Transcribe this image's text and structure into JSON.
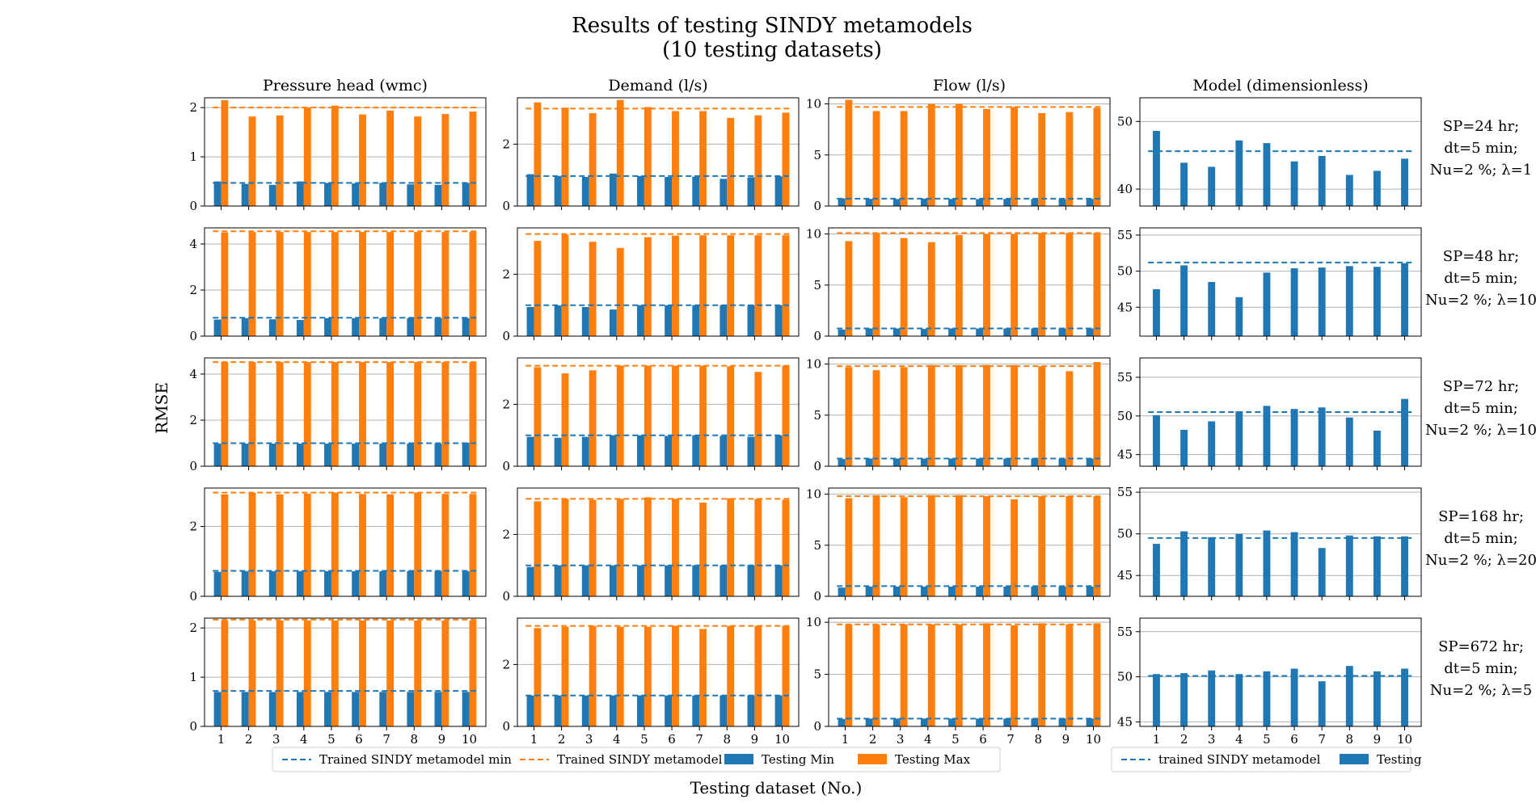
{
  "figure": {
    "title_line1": "Results of testing SINDY metamodels",
    "title_line2": "(10 testing datasets)",
    "ylabel": "RMSE",
    "xlabel": "Testing dataset (No.)"
  },
  "column_titles": [
    "Pressure head (wmc)",
    "Demand (l/s)",
    "Flow (l/s)",
    "Model (dimensionless)"
  ],
  "row_labels": [
    [
      "SP=24 hr;",
      "dt=5 min;",
      "Nu=2 %; λ=1"
    ],
    [
      "SP=48 hr;",
      "dt=5 min;",
      "Nu=2 %; λ=10"
    ],
    [
      "SP=72 hr;",
      "dt=5 min;",
      "Nu=2 %; λ=10"
    ],
    [
      "SP=168 hr;",
      "dt=5 min;",
      "Nu=2 %; λ=20"
    ],
    [
      "SP=672 hr;",
      "dt=5 min;",
      "Nu=2 %; λ=5"
    ]
  ],
  "legend_left": [
    {
      "label": "Trained SINDY metamodel min",
      "kind": "dash",
      "color": "#1f77b4"
    },
    {
      "label": "Trained SINDY metamodel max",
      "kind": "dash",
      "color": "#ff7f0e"
    },
    {
      "label": "Testing Min",
      "kind": "patch",
      "color": "#1f77b4"
    },
    {
      "label": "Testing Max",
      "kind": "patch",
      "color": "#ff7f0e"
    }
  ],
  "legend_right": [
    {
      "label": "trained SINDY metamodel",
      "kind": "dash",
      "color": "#1f77b4"
    },
    {
      "label": "Testing",
      "kind": "patch",
      "color": "#1f77b4"
    }
  ],
  "colors": {
    "min": "#1f77b4",
    "max": "#ff7f0e",
    "grid": "#b0b0b0"
  },
  "chart_data": [
    {
      "type": "bar",
      "row": 0,
      "col": 0,
      "categories": [
        "1",
        "2",
        "3",
        "4",
        "5",
        "6",
        "7",
        "8",
        "9",
        "10"
      ],
      "ylim": [
        0,
        2.2
      ],
      "yticks": [
        0,
        1,
        2
      ],
      "grid": true,
      "series": [
        {
          "name": "Testing Min",
          "values": [
            0.5,
            0.45,
            0.43,
            0.5,
            0.47,
            0.46,
            0.47,
            0.44,
            0.43,
            0.47
          ]
        },
        {
          "name": "Testing Max",
          "values": [
            2.15,
            1.82,
            1.84,
            2.0,
            2.04,
            1.86,
            1.94,
            1.82,
            1.87,
            1.92
          ]
        }
      ],
      "trained_min": 0.47,
      "trained_max": 2.0
    },
    {
      "type": "bar",
      "row": 0,
      "col": 1,
      "categories": [
        "1",
        "2",
        "3",
        "4",
        "5",
        "6",
        "7",
        "8",
        "9",
        "10"
      ],
      "ylim": [
        0,
        3.5
      ],
      "yticks": [
        0,
        2
      ],
      "grid": true,
      "series": [
        {
          "name": "Testing Min",
          "values": [
            1.03,
            0.97,
            0.94,
            1.05,
            0.97,
            0.94,
            0.95,
            0.88,
            0.93,
            0.96
          ]
        },
        {
          "name": "Testing Max",
          "values": [
            3.35,
            3.18,
            3.0,
            3.43,
            3.2,
            3.07,
            3.07,
            2.85,
            2.93,
            3.02
          ]
        }
      ],
      "trained_min": 0.97,
      "trained_max": 3.15
    },
    {
      "type": "bar",
      "row": 0,
      "col": 2,
      "categories": [
        "1",
        "2",
        "3",
        "4",
        "5",
        "6",
        "7",
        "8",
        "9",
        "10"
      ],
      "ylim": [
        0,
        10.6
      ],
      "yticks": [
        0,
        5,
        10
      ],
      "grid": true,
      "series": [
        {
          "name": "Testing Min",
          "values": [
            0.75,
            0.7,
            0.68,
            0.72,
            0.7,
            0.68,
            0.7,
            0.68,
            0.68,
            0.7
          ]
        },
        {
          "name": "Testing Max",
          "values": [
            10.4,
            9.3,
            9.3,
            10.0,
            10.0,
            9.5,
            9.7,
            9.1,
            9.2,
            9.6
          ]
        }
      ],
      "trained_min": 0.72,
      "trained_max": 9.7
    },
    {
      "type": "bar",
      "row": 0,
      "col": 3,
      "categories": [
        "1",
        "2",
        "3",
        "4",
        "5",
        "6",
        "7",
        "8",
        "9",
        "10"
      ],
      "ylim": [
        37.5,
        53.5
      ],
      "yticks": [
        40,
        50
      ],
      "grid": true,
      "series": [
        {
          "name": "Testing",
          "values": [
            48.6,
            43.9,
            43.3,
            47.2,
            46.8,
            44.1,
            44.9,
            42.1,
            42.7,
            44.5
          ]
        }
      ],
      "trained": 45.6
    },
    {
      "type": "bar",
      "row": 1,
      "col": 0,
      "categories": [
        "1",
        "2",
        "3",
        "4",
        "5",
        "6",
        "7",
        "8",
        "9",
        "10"
      ],
      "ylim": [
        0,
        4.7
      ],
      "yticks": [
        0,
        2,
        4
      ],
      "grid": true,
      "series": [
        {
          "name": "Testing Min",
          "values": [
            0.72,
            0.78,
            0.73,
            0.7,
            0.78,
            0.78,
            0.78,
            0.78,
            0.78,
            0.78
          ]
        },
        {
          "name": "Testing Max",
          "values": [
            4.5,
            4.52,
            4.52,
            4.52,
            4.52,
            4.52,
            4.52,
            4.52,
            4.52,
            4.52
          ]
        }
      ],
      "trained_min": 0.8,
      "trained_max": 4.55
    },
    {
      "type": "bar",
      "row": 1,
      "col": 1,
      "categories": [
        "1",
        "2",
        "3",
        "4",
        "5",
        "6",
        "7",
        "8",
        "9",
        "10"
      ],
      "ylim": [
        0,
        3.5
      ],
      "yticks": [
        0,
        2
      ],
      "grid": true,
      "series": [
        {
          "name": "Testing Min",
          "values": [
            0.94,
            0.99,
            0.94,
            0.86,
            1.0,
            1.0,
            1.0,
            1.0,
            1.0,
            1.0
          ]
        },
        {
          "name": "Testing Max",
          "values": [
            3.08,
            3.28,
            3.05,
            2.85,
            3.2,
            3.25,
            3.26,
            3.26,
            3.26,
            3.26
          ]
        }
      ],
      "trained_min": 1.0,
      "trained_max": 3.3
    },
    {
      "type": "bar",
      "row": 1,
      "col": 2,
      "categories": [
        "1",
        "2",
        "3",
        "4",
        "5",
        "6",
        "7",
        "8",
        "9",
        "10"
      ],
      "ylim": [
        0,
        10.6
      ],
      "yticks": [
        0,
        5,
        10
      ],
      "grid": true,
      "series": [
        {
          "name": "Testing Min",
          "values": [
            0.65,
            0.75,
            0.75,
            0.7,
            0.75,
            0.75,
            0.75,
            0.75,
            0.75,
            0.75
          ]
        },
        {
          "name": "Testing Max",
          "values": [
            9.3,
            10.1,
            9.6,
            9.2,
            9.9,
            10.0,
            10.0,
            10.1,
            10.1,
            10.1
          ]
        }
      ],
      "trained_min": 0.75,
      "trained_max": 10.1
    },
    {
      "type": "bar",
      "row": 1,
      "col": 3,
      "categories": [
        "1",
        "2",
        "3",
        "4",
        "5",
        "6",
        "7",
        "8",
        "9",
        "10"
      ],
      "ylim": [
        41,
        56
      ],
      "yticks": [
        45,
        50,
        55
      ],
      "grid": true,
      "series": [
        {
          "name": "Testing",
          "values": [
            47.5,
            50.8,
            48.5,
            46.4,
            49.8,
            50.4,
            50.5,
            50.7,
            50.6,
            51.1
          ]
        }
      ],
      "trained": 51.2
    },
    {
      "type": "bar",
      "row": 2,
      "col": 0,
      "categories": [
        "1",
        "2",
        "3",
        "4",
        "5",
        "6",
        "7",
        "8",
        "9",
        "10"
      ],
      "ylim": [
        0,
        4.7
      ],
      "yticks": [
        0,
        2,
        4
      ],
      "grid": true,
      "series": [
        {
          "name": "Testing Min",
          "values": [
            0.98,
            0.98,
            0.98,
            0.98,
            0.98,
            0.98,
            0.98,
            0.98,
            0.98,
            1.02
          ]
        },
        {
          "name": "Testing Max",
          "values": [
            4.52,
            4.52,
            4.52,
            4.52,
            4.52,
            4.52,
            4.52,
            4.52,
            4.52,
            4.52
          ]
        }
      ],
      "trained_min": 1.0,
      "trained_max": 4.52
    },
    {
      "type": "bar",
      "row": 2,
      "col": 1,
      "categories": [
        "1",
        "2",
        "3",
        "4",
        "5",
        "6",
        "7",
        "8",
        "9",
        "10"
      ],
      "ylim": [
        0,
        3.5
      ],
      "yticks": [
        0,
        2
      ],
      "grid": true,
      "series": [
        {
          "name": "Testing Min",
          "values": [
            0.95,
            0.92,
            0.95,
            1.0,
            1.0,
            0.98,
            1.0,
            0.98,
            0.95,
            1.0
          ]
        },
        {
          "name": "Testing Max",
          "values": [
            3.2,
            3.0,
            3.1,
            3.25,
            3.25,
            3.25,
            3.25,
            3.23,
            3.05,
            3.25
          ]
        }
      ],
      "trained_min": 1.0,
      "trained_max": 3.25
    },
    {
      "type": "bar",
      "row": 2,
      "col": 2,
      "categories": [
        "1",
        "2",
        "3",
        "4",
        "5",
        "6",
        "7",
        "8",
        "9",
        "10"
      ],
      "ylim": [
        0,
        10.6
      ],
      "yticks": [
        0,
        5,
        10
      ],
      "grid": true,
      "series": [
        {
          "name": "Testing Min",
          "values": [
            0.7,
            0.75,
            0.75,
            0.75,
            0.75,
            0.75,
            0.75,
            0.75,
            0.72,
            0.75
          ]
        },
        {
          "name": "Testing Max",
          "values": [
            9.7,
            9.4,
            9.7,
            9.9,
            9.9,
            9.9,
            9.9,
            9.8,
            9.3,
            10.2
          ]
        }
      ],
      "trained_min": 0.75,
      "trained_max": 9.8
    },
    {
      "type": "bar",
      "row": 2,
      "col": 3,
      "categories": [
        "1",
        "2",
        "3",
        "4",
        "5",
        "6",
        "7",
        "8",
        "9",
        "10"
      ],
      "ylim": [
        43.5,
        57.5
      ],
      "yticks": [
        45,
        50,
        55
      ],
      "grid": true,
      "series": [
        {
          "name": "Testing",
          "values": [
            50.1,
            48.2,
            49.3,
            50.6,
            51.3,
            50.9,
            51.1,
            49.8,
            48.1,
            52.2
          ]
        }
      ],
      "trained": 50.5
    },
    {
      "type": "bar",
      "row": 3,
      "col": 0,
      "categories": [
        "1",
        "2",
        "3",
        "4",
        "5",
        "6",
        "7",
        "8",
        "9",
        "10"
      ],
      "ylim": [
        0,
        3.1
      ],
      "yticks": [
        0,
        2
      ],
      "grid": true,
      "series": [
        {
          "name": "Testing Min",
          "values": [
            0.7,
            0.72,
            0.72,
            0.72,
            0.72,
            0.72,
            0.72,
            0.72,
            0.72,
            0.72
          ]
        },
        {
          "name": "Testing Max",
          "values": [
            2.92,
            2.97,
            2.92,
            2.94,
            2.97,
            2.93,
            2.92,
            2.97,
            2.93,
            2.93
          ]
        }
      ],
      "trained_min": 0.73,
      "trained_max": 2.97
    },
    {
      "type": "bar",
      "row": 3,
      "col": 1,
      "categories": [
        "1",
        "2",
        "3",
        "4",
        "5",
        "6",
        "7",
        "8",
        "9",
        "10"
      ],
      "ylim": [
        0,
        3.5
      ],
      "yticks": [
        0,
        2
      ],
      "grid": true,
      "series": [
        {
          "name": "Testing Min",
          "values": [
            0.95,
            1.0,
            1.0,
            1.0,
            1.0,
            1.0,
            1.0,
            1.0,
            1.0,
            1.0
          ]
        },
        {
          "name": "Testing Max",
          "values": [
            3.07,
            3.15,
            3.12,
            3.15,
            3.2,
            3.15,
            3.03,
            3.17,
            3.15,
            3.12
          ]
        }
      ],
      "trained_min": 1.0,
      "trained_max": 3.15
    },
    {
      "type": "bar",
      "row": 3,
      "col": 2,
      "categories": [
        "1",
        "2",
        "3",
        "4",
        "5",
        "6",
        "7",
        "8",
        "9",
        "10"
      ],
      "ylim": [
        0,
        10.6
      ],
      "yticks": [
        0,
        5,
        10
      ],
      "grid": true,
      "series": [
        {
          "name": "Testing Min",
          "values": [
            0.85,
            0.95,
            0.95,
            0.95,
            0.95,
            0.95,
            0.95,
            0.95,
            0.95,
            0.95
          ]
        },
        {
          "name": "Testing Max",
          "values": [
            9.6,
            9.9,
            9.7,
            9.9,
            9.9,
            9.8,
            9.5,
            9.8,
            9.8,
            9.8
          ]
        }
      ],
      "trained_min": 1.0,
      "trained_max": 9.8
    },
    {
      "type": "bar",
      "row": 3,
      "col": 3,
      "categories": [
        "1",
        "2",
        "3",
        "4",
        "5",
        "6",
        "7",
        "8",
        "9",
        "10"
      ],
      "ylim": [
        42.5,
        55.5
      ],
      "yticks": [
        45,
        50,
        55
      ],
      "grid": true,
      "series": [
        {
          "name": "Testing",
          "values": [
            48.8,
            50.3,
            49.6,
            50.0,
            50.4,
            50.2,
            48.3,
            49.8,
            49.7,
            49.7
          ]
        }
      ],
      "trained": 49.5
    },
    {
      "type": "bar",
      "row": 4,
      "col": 0,
      "categories": [
        "1",
        "2",
        "3",
        "4",
        "5",
        "6",
        "7",
        "8",
        "9",
        "10"
      ],
      "ylim": [
        0,
        2.2
      ],
      "yticks": [
        0,
        1,
        2
      ],
      "grid": true,
      "series": [
        {
          "name": "Testing Min",
          "values": [
            0.7,
            0.7,
            0.7,
            0.7,
            0.7,
            0.7,
            0.7,
            0.7,
            0.7,
            0.7
          ]
        },
        {
          "name": "Testing Max",
          "values": [
            2.15,
            2.15,
            2.15,
            2.15,
            2.15,
            2.15,
            2.15,
            2.15,
            2.15,
            2.15
          ]
        }
      ],
      "trained_min": 0.72,
      "trained_max": 2.17
    },
    {
      "type": "bar",
      "row": 4,
      "col": 1,
      "categories": [
        "1",
        "2",
        "3",
        "4",
        "5",
        "6",
        "7",
        "8",
        "9",
        "10"
      ],
      "ylim": [
        0,
        3.5
      ],
      "yticks": [
        0,
        2
      ],
      "grid": true,
      "series": [
        {
          "name": "Testing Min",
          "values": [
            1.0,
            1.0,
            1.0,
            1.0,
            1.0,
            1.0,
            1.0,
            1.0,
            1.0,
            1.0
          ]
        },
        {
          "name": "Testing Max",
          "values": [
            3.18,
            3.22,
            3.25,
            3.22,
            3.22,
            3.25,
            3.15,
            3.25,
            3.25,
            3.25
          ]
        }
      ],
      "trained_min": 1.0,
      "trained_max": 3.25
    },
    {
      "type": "bar",
      "row": 4,
      "col": 2,
      "categories": [
        "1",
        "2",
        "3",
        "4",
        "5",
        "6",
        "7",
        "8",
        "9",
        "10"
      ],
      "ylim": [
        0,
        10.4
      ],
      "yticks": [
        0,
        5,
        10
      ],
      "grid": true,
      "series": [
        {
          "name": "Testing Min",
          "values": [
            0.72,
            0.75,
            0.75,
            0.75,
            0.75,
            0.75,
            0.75,
            0.75,
            0.75,
            0.75
          ]
        },
        {
          "name": "Testing Max",
          "values": [
            9.8,
            9.8,
            9.8,
            9.8,
            9.8,
            9.9,
            9.7,
            9.9,
            9.8,
            9.9
          ]
        }
      ],
      "trained_min": 0.75,
      "trained_max": 9.8
    },
    {
      "type": "bar",
      "row": 4,
      "col": 3,
      "categories": [
        "1",
        "2",
        "3",
        "4",
        "5",
        "6",
        "7",
        "8",
        "9",
        "10"
      ],
      "ylim": [
        44.5,
        56.5
      ],
      "yticks": [
        45,
        50,
        55
      ],
      "grid": true,
      "series": [
        {
          "name": "Testing",
          "values": [
            50.3,
            50.4,
            50.7,
            50.3,
            50.6,
            50.9,
            49.5,
            51.2,
            50.6,
            50.9
          ]
        }
      ],
      "trained": 50.1
    }
  ]
}
